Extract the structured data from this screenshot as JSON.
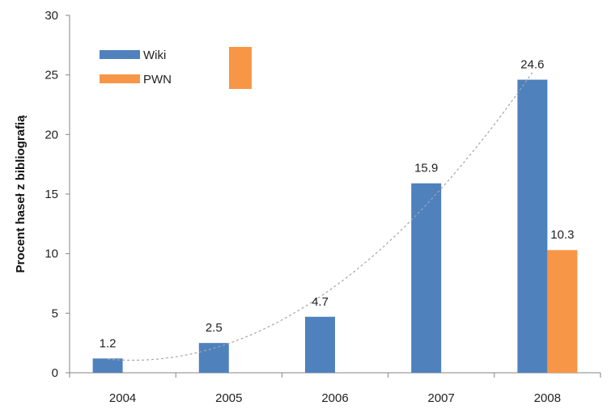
{
  "chart_data": {
    "type": "bar",
    "categories": [
      "2004",
      "2005",
      "2006",
      "2007",
      "2008"
    ],
    "series": [
      {
        "name": "Wiki",
        "color": "#4f81bd",
        "values": [
          1.2,
          2.5,
          4.7,
          15.9,
          24.6
        ],
        "labels": [
          "1.2",
          "2.5",
          "4.7",
          "15.9",
          "24.6"
        ]
      },
      {
        "name": "PWN",
        "color": "#f79646",
        "values": [
          null,
          null,
          null,
          null,
          10.3
        ],
        "labels": [
          "",
          "",
          "",
          "",
          "10.3"
        ]
      }
    ],
    "ylabel": "Procent haseł z bibliografią",
    "xlabel": "",
    "ylim": [
      0,
      30
    ],
    "yticks": [
      0,
      5,
      10,
      15,
      20,
      25,
      30
    ],
    "grid": false,
    "legend": "top-left",
    "trendline": {
      "style": "dashed",
      "type": "polynomial",
      "series": "Wiki"
    }
  }
}
